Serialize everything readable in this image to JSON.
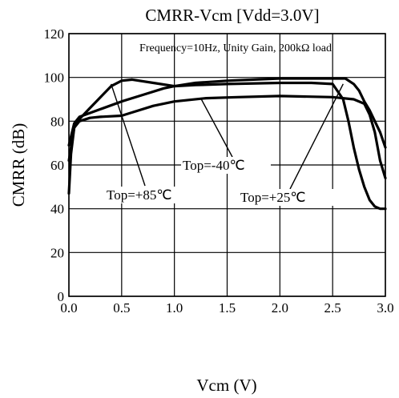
{
  "chart_data": {
    "type": "line",
    "title": "CMRR-Vcm [Vdd=3.0V]",
    "subtitle": "Frequency=10Hz, Unity Gain, 200kΩ  load",
    "xlabel": "Vcm (V)",
    "ylabel": "CMRR (dB)",
    "xlim": [
      0,
      3
    ],
    "ylim": [
      0,
      120
    ],
    "grid": true,
    "x_ticks": [
      "0.0",
      "0.5",
      "1.0",
      "1.5",
      "2.0",
      "2.5",
      "3.0"
    ],
    "y_ticks": [
      "0",
      "20",
      "40",
      "60",
      "80",
      "100",
      "120"
    ],
    "series": [
      {
        "name": "Top=+85℃",
        "points": [
          [
            0.0,
            62
          ],
          [
            0.05,
            77
          ],
          [
            0.1,
            81
          ],
          [
            0.2,
            86
          ],
          [
            0.3,
            91
          ],
          [
            0.4,
            96
          ],
          [
            0.5,
            98.5
          ],
          [
            0.6,
            99
          ],
          [
            0.8,
            97.5
          ],
          [
            1.0,
            96
          ],
          [
            1.2,
            96.5
          ],
          [
            1.5,
            97
          ],
          [
            2.0,
            97.5
          ],
          [
            2.3,
            97.5
          ],
          [
            2.5,
            97
          ],
          [
            2.6,
            90
          ],
          [
            2.65,
            80
          ],
          [
            2.7,
            68
          ],
          [
            2.75,
            58
          ],
          [
            2.8,
            50
          ],
          [
            2.85,
            44
          ],
          [
            2.9,
            41
          ],
          [
            2.95,
            40
          ],
          [
            3.0,
            40
          ]
        ]
      },
      {
        "name": "Top=-40℃",
        "points": [
          [
            0.0,
            47
          ],
          [
            0.02,
            65
          ],
          [
            0.05,
            77
          ],
          [
            0.1,
            80
          ],
          [
            0.2,
            81.5
          ],
          [
            0.3,
            82
          ],
          [
            0.5,
            82.5
          ],
          [
            0.6,
            84
          ],
          [
            0.8,
            87
          ],
          [
            1.0,
            89
          ],
          [
            1.3,
            90.5
          ],
          [
            1.6,
            91
          ],
          [
            2.0,
            91.5
          ],
          [
            2.5,
            91
          ],
          [
            2.7,
            90
          ],
          [
            2.8,
            88
          ],
          [
            2.85,
            83
          ],
          [
            2.9,
            75
          ],
          [
            2.95,
            62
          ],
          [
            3.0,
            54
          ]
        ]
      },
      {
        "name": "Top=+25℃",
        "points": [
          [
            0.0,
            69
          ],
          [
            0.05,
            79
          ],
          [
            0.1,
            82
          ],
          [
            0.3,
            85.5
          ],
          [
            0.5,
            89
          ],
          [
            0.7,
            92
          ],
          [
            0.9,
            95
          ],
          [
            1.0,
            96
          ],
          [
            1.2,
            97.5
          ],
          [
            1.5,
            98.5
          ],
          [
            2.0,
            99.5
          ],
          [
            2.3,
            99.5
          ],
          [
            2.5,
            99.5
          ],
          [
            2.62,
            99.5
          ],
          [
            2.7,
            97
          ],
          [
            2.75,
            94
          ],
          [
            2.8,
            89
          ],
          [
            2.85,
            85
          ],
          [
            2.9,
            80
          ],
          [
            2.95,
            75
          ],
          [
            3.0,
            68
          ]
        ]
      }
    ],
    "annotations": [
      {
        "text": "Top=+85℃",
        "series": "Top=+85℃"
      },
      {
        "text": "Top=-40℃",
        "series": "Top=-40℃"
      },
      {
        "text": "Top=+25℃",
        "series": "Top=+25℃"
      }
    ]
  }
}
